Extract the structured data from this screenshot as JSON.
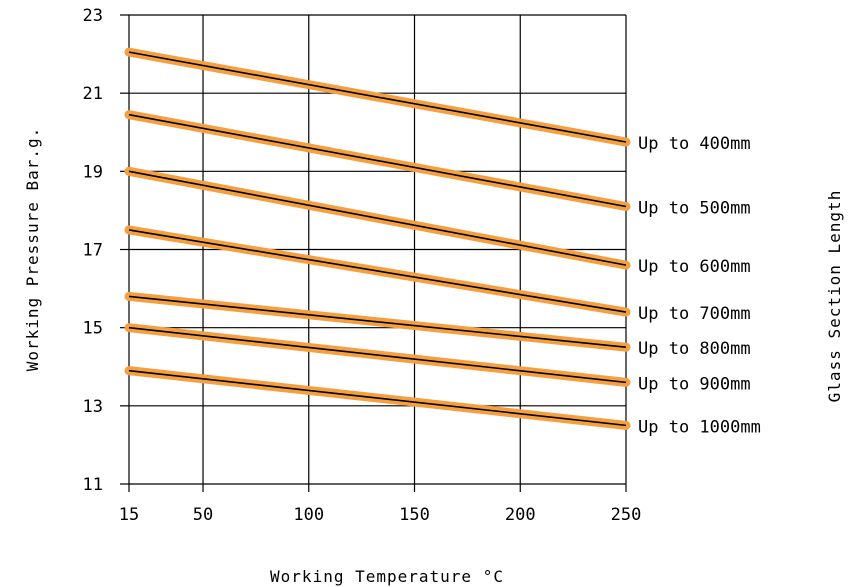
{
  "chart_data": {
    "type": "line",
    "xlabel": "Working Temperature °C",
    "ylabel": "Working Pressure Bar.g.",
    "right_label": "Glass Section Length",
    "xlim": [
      15,
      250
    ],
    "ylim": [
      11,
      23
    ],
    "x_ticks": [
      {
        "value": 15,
        "label": "15"
      },
      {
        "value": 50,
        "label": "50"
      },
      {
        "value": 100,
        "label": "100"
      },
      {
        "value": 150,
        "label": "150"
      },
      {
        "value": 200,
        "label": "200"
      },
      {
        "value": 250,
        "label": "250"
      }
    ],
    "y_ticks": [
      {
        "value": 11,
        "label": "11"
      },
      {
        "value": 13,
        "label": "13"
      },
      {
        "value": 15,
        "label": "15"
      },
      {
        "value": 17,
        "label": "17"
      },
      {
        "value": 19,
        "label": "19"
      },
      {
        "value": 21,
        "label": "21"
      },
      {
        "value": 23,
        "label": "23"
      }
    ],
    "grid": true,
    "series": [
      {
        "name": "Up to 400mm",
        "x": [
          15,
          250
        ],
        "y": [
          22.05,
          19.75
        ]
      },
      {
        "name": "Up to 500mm",
        "x": [
          15,
          250
        ],
        "y": [
          20.45,
          18.1
        ]
      },
      {
        "name": "Up to 600mm",
        "x": [
          15,
          250
        ],
        "y": [
          19.0,
          16.6
        ]
      },
      {
        "name": "Up to 700mm",
        "x": [
          15,
          250
        ],
        "y": [
          17.5,
          15.4
        ]
      },
      {
        "name": "Up to 800mm",
        "x": [
          15,
          250
        ],
        "y": [
          15.8,
          14.5
        ]
      },
      {
        "name": "Up to 900mm",
        "x": [
          15,
          250
        ],
        "y": [
          15.0,
          13.6
        ]
      },
      {
        "name": "Up to 1000mm",
        "x": [
          15,
          250
        ],
        "y": [
          13.9,
          12.5
        ]
      }
    ],
    "colors": {
      "band": "#f5a040",
      "line": "#000000",
      "grid": "#000000"
    }
  }
}
